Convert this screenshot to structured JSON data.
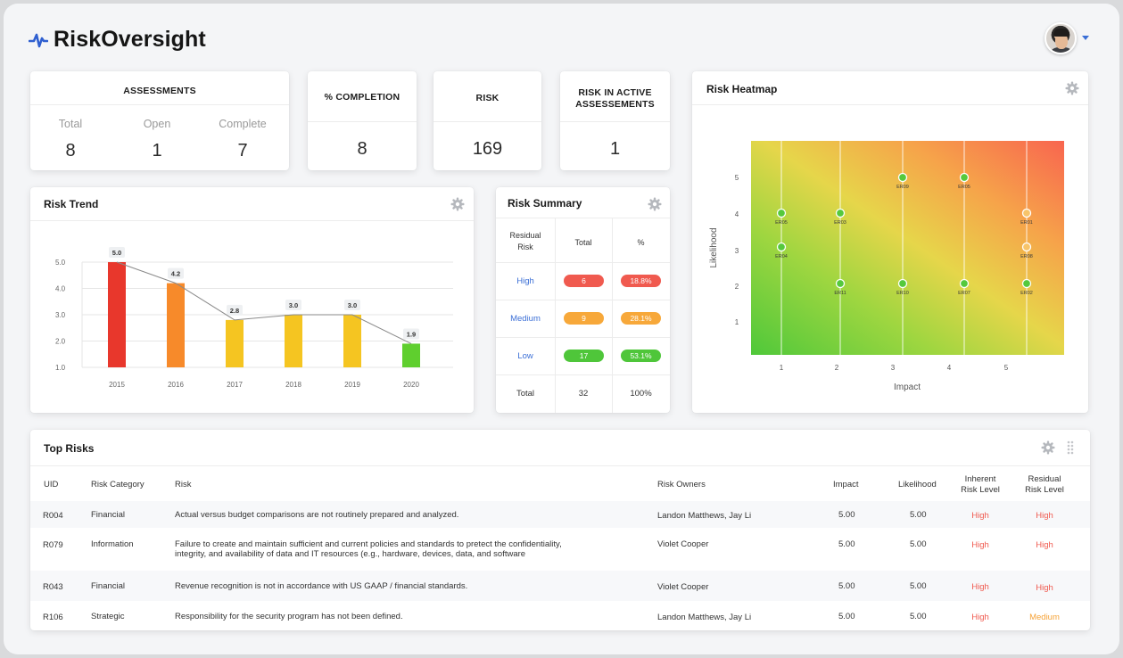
{
  "app": {
    "title": "RiskOversight"
  },
  "kpis": {
    "assessments": {
      "title": "ASSESSMENTS",
      "total_label": "Total",
      "total": "8",
      "open_label": "Open",
      "open": "1",
      "complete_label": "Complete",
      "complete": "7"
    },
    "completion": {
      "title": "% COMPLETION",
      "value": "8"
    },
    "risk": {
      "title": "RISK",
      "value": "169"
    },
    "active": {
      "title_line1": "RISK IN ACTIVE",
      "title_line2": "ASSESSEMENTS",
      "value": "1"
    }
  },
  "risk_trend": {
    "title": "Risk Trend"
  },
  "risk_summary": {
    "title": "Risk Summary",
    "headers": {
      "residual_line1": "Residual",
      "residual_line2": "Risk",
      "total": "Total",
      "pct": "%"
    },
    "rows": [
      {
        "level": "High",
        "total": "6",
        "pct": "18.8%",
        "total_color": "#f05a4f",
        "pct_color": "#f05a4f"
      },
      {
        "level": "Medium",
        "total": "9",
        "pct": "28.1%",
        "total_color": "#f7a83a",
        "pct_color": "#f7a83a"
      },
      {
        "level": "Low",
        "total": "17",
        "pct": "53.1%",
        "total_color": "#4fc63a",
        "pct_color": "#4fc63a"
      }
    ],
    "footer": {
      "label": "Total",
      "total": "32",
      "pct": "100%"
    }
  },
  "heatmap": {
    "title": "Risk Heatmap",
    "xlabel": "Impact",
    "ylabel": "Likelihood",
    "xticks": [
      "1",
      "2",
      "3",
      "4",
      "5"
    ],
    "yticks": [
      "5",
      "4",
      "3",
      "2",
      "1"
    ],
    "points": [
      {
        "id": "ER05",
        "impact": 1,
        "likelihood": 4
      },
      {
        "id": "ER04",
        "impact": 1,
        "likelihood": 3
      },
      {
        "id": "ER03",
        "impact": 2,
        "likelihood": 4
      },
      {
        "id": "ER11",
        "impact": 2,
        "likelihood": 2
      },
      {
        "id": "ER09",
        "impact": 3,
        "likelihood": 5
      },
      {
        "id": "ER10",
        "impact": 3,
        "likelihood": 2
      },
      {
        "id": "ER05",
        "impact": 4,
        "likelihood": 5
      },
      {
        "id": "ER07",
        "impact": 4,
        "likelihood": 2
      },
      {
        "id": "ER01",
        "impact": 5,
        "likelihood": 4
      },
      {
        "id": "ER08",
        "impact": 5,
        "likelihood": 3
      },
      {
        "id": "ER02",
        "impact": 5,
        "likelihood": 2
      }
    ]
  },
  "chart_data": {
    "type": "bar",
    "title": "Risk Trend",
    "categories": [
      "2015",
      "2016",
      "2017",
      "2018",
      "2019",
      "2020"
    ],
    "values": [
      5.0,
      4.2,
      2.8,
      3.0,
      3.0,
      1.9
    ],
    "data_labels": [
      "5.0",
      "4.2",
      "2.8",
      "3.0",
      "3.0",
      "1.9"
    ],
    "bar_colors": [
      "#e8372c",
      "#f78a2a",
      "#f5c521",
      "#f5c521",
      "#f5c521",
      "#5fcf2e"
    ],
    "line_overlay": true,
    "yticks": [
      "5.0",
      "4.0",
      "3.0",
      "2.0",
      "1.0"
    ],
    "ylim": [
      1.0,
      5.0
    ],
    "grid": true
  },
  "top_risks": {
    "title": "Top Risks",
    "columns": {
      "uid": "UID",
      "category": "Risk Category",
      "risk": "Risk",
      "owners": "Risk Owners",
      "impact": "Impact",
      "likelihood": "Likelihood",
      "inherent_line1": "Inherent",
      "inherent_line2": "Risk Level",
      "residual_line1": "Residual",
      "residual_line2": "Risk Level"
    },
    "rows": [
      {
        "uid": "R004",
        "category": "Financial",
        "risk_line1": "Actual versus budget comparisons are not routinely prepared and analyzed.",
        "risk_line2": "",
        "owners": "Landon Matthews, Jay Li",
        "impact": "5.00",
        "likelihood": "5.00",
        "inherent": "High",
        "residual": "High"
      },
      {
        "uid": "R079",
        "category": "Information",
        "risk_line1": "Failure to create and maintain sufficient and current policies and standards to pretect the confidentiality,",
        "risk_line2": "integrity, and availability of data and IT resources (e.g., hardware, devices, data, and software",
        "owners": "Violet Cooper",
        "impact": "5.00",
        "likelihood": "5.00",
        "inherent": "High",
        "residual": "High"
      },
      {
        "uid": "R043",
        "category": "Financial",
        "risk_line1": "Revenue recognition is not in accordance with US GAAP / financial standards.",
        "risk_line2": "",
        "owners": "Violet Cooper",
        "impact": "5.00",
        "likelihood": "5.00",
        "inherent": "High",
        "residual": "High"
      },
      {
        "uid": "R106",
        "category": "Strategic",
        "risk_line1": "Responsibility for the security program has not been defined.",
        "risk_line2": "",
        "owners": "Landon Matthews, Jay Li",
        "impact": "5.00",
        "likelihood": "5.00",
        "inherent": "High",
        "residual": "Medium"
      }
    ]
  }
}
